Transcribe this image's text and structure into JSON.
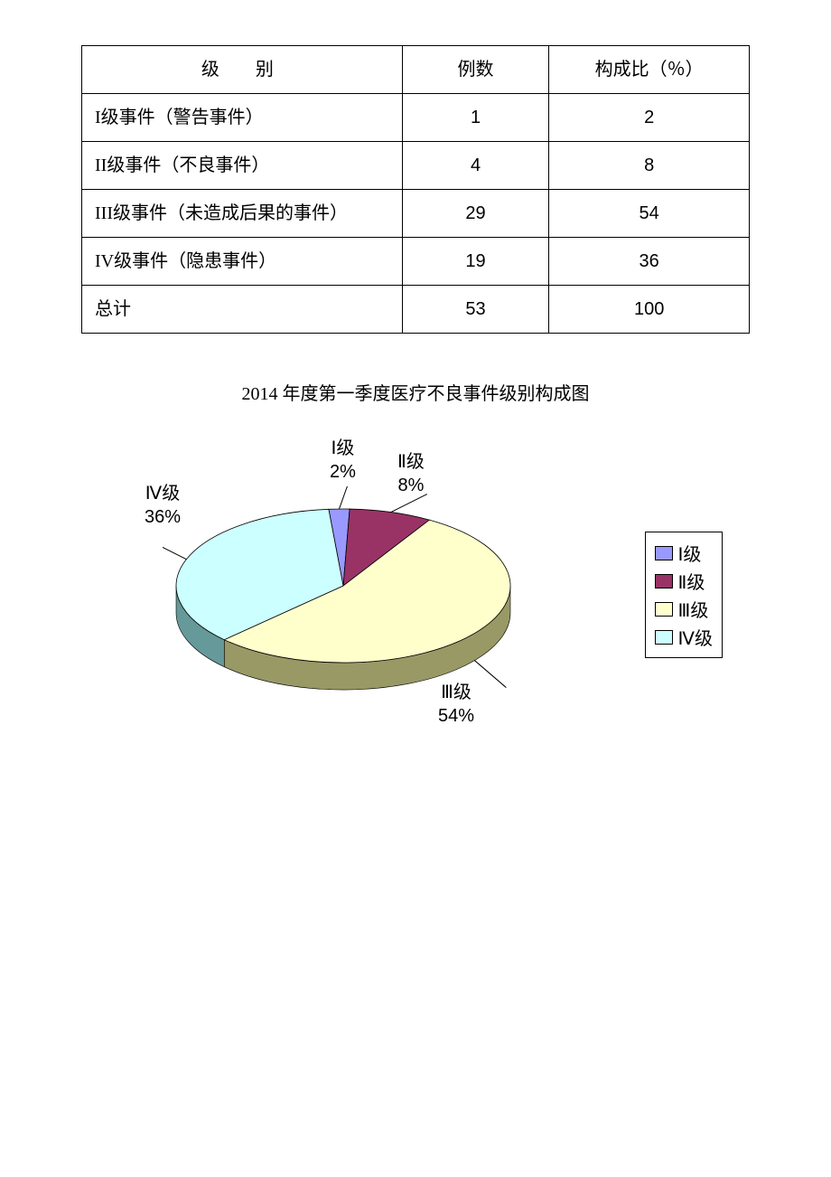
{
  "table": {
    "columns": [
      "级　别",
      "例数",
      "构成比（％）"
    ],
    "rows": [
      [
        "I级事件（警告事件）",
        "1",
        "2"
      ],
      [
        "II级事件（不良事件）",
        "4",
        "8"
      ],
      [
        "III级事件（未造成后果的事件）",
        "29",
        "54"
      ],
      [
        "IV级事件（隐患事件）",
        "19",
        "36"
      ],
      [
        "总计",
        "53",
        "100"
      ]
    ]
  },
  "chart": {
    "title": "2014 年度第一季度医疗不良事件级别构成图",
    "type": "pie",
    "slices": [
      {
        "label": "Ⅰ级",
        "percent": 2,
        "percent_label": "2%",
        "color": "#9999ff",
        "side_color": "#6666cc"
      },
      {
        "label": "Ⅱ级",
        "percent": 8,
        "percent_label": "8%",
        "color": "#993366",
        "side_color": "#662244"
      },
      {
        "label": "Ⅲ级",
        "percent": 54,
        "percent_label": "54%",
        "color": "#ffffcc",
        "side_color": "#999966"
      },
      {
        "label": "Ⅳ级",
        "percent": 36,
        "percent_label": "36%",
        "color": "#ccffff",
        "side_color": "#669999"
      }
    ],
    "legend_items": [
      {
        "label": "Ⅰ级",
        "color": "#9999ff"
      },
      {
        "label": "Ⅱ级",
        "color": "#993366"
      },
      {
        "label": "Ⅲ级",
        "color": "#ffffcc"
      },
      {
        "label": "Ⅳ级",
        "color": "#ccffff"
      }
    ],
    "slice_labels": {
      "l0": "Ⅰ级",
      "p0": "2%",
      "l1": "Ⅱ级",
      "p1": "8%",
      "l2": "Ⅲ级",
      "p2": "54%",
      "l3": "Ⅳ级",
      "p3": "36%"
    }
  }
}
